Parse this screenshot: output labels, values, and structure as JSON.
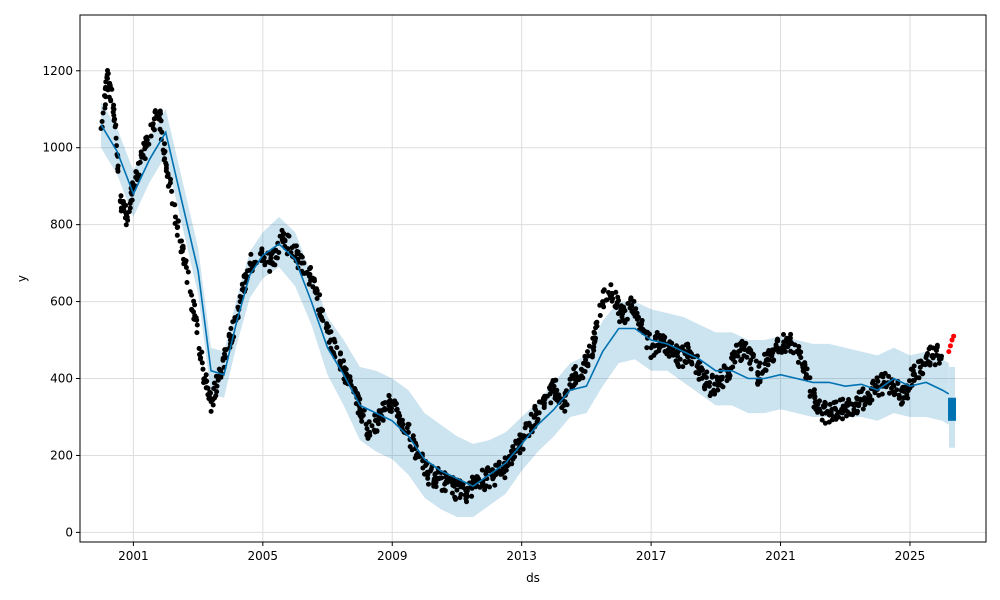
{
  "chart_data": {
    "type": "line",
    "xlabel": "ds",
    "ylabel": "y",
    "grid": true,
    "legend": "none",
    "xlim": [
      1999.35,
      2027.35
    ],
    "ylim": [
      -25,
      1345
    ],
    "xticks": [
      2001,
      2005,
      2009,
      2013,
      2017,
      2021,
      2025
    ],
    "xtick_labels": [
      "2001",
      "2005",
      "2009",
      "2013",
      "2017",
      "2021",
      "2025"
    ],
    "yticks": [
      0,
      200,
      400,
      600,
      800,
      1000,
      1200
    ],
    "ytick_labels": [
      "0",
      "200",
      "400",
      "600",
      "800",
      "1000",
      "1200"
    ],
    "colors": {
      "observed": "#000000",
      "forecast": "#0072B2",
      "interval": "#0072B2",
      "recent": "#ff0000",
      "grid": "#dddddd",
      "frame": "#000000"
    },
    "series": [
      {
        "role": "observed",
        "style": "points",
        "x": [
          2000.0,
          2000.2,
          2000.4,
          2000.6,
          2000.8,
          2001.0,
          2001.3,
          2001.6,
          2001.8,
          2002.0,
          2002.3,
          2002.6,
          2002.9,
          2003.2,
          2003.4,
          2003.7,
          2004.0,
          2004.3,
          2004.6,
          2005.0,
          2005.3,
          2005.6,
          2005.9,
          2006.2,
          2006.5,
          2006.8,
          2007.1,
          2007.4,
          2007.7,
          2008.0,
          2008.3,
          2008.6,
          2008.9,
          2009.2,
          2009.5,
          2009.8,
          2010.1,
          2010.4,
          2010.7,
          2011.0,
          2011.3,
          2011.6,
          2011.9,
          2012.2,
          2012.5,
          2012.8,
          2013.1,
          2013.4,
          2013.7,
          2014.0,
          2014.3,
          2014.6,
          2014.9,
          2015.2,
          2015.5,
          2015.8,
          2016.1,
          2016.4,
          2016.7,
          2017.0,
          2017.3,
          2017.6,
          2017.9,
          2018.2,
          2018.5,
          2018.8,
          2019.1,
          2019.4,
          2019.7,
          2020.0,
          2020.3,
          2020.6,
          2020.9,
          2021.2,
          2021.5,
          2021.8,
          2022.1,
          2022.4,
          2022.7,
          2023.0,
          2023.3,
          2023.6,
          2023.9,
          2024.2,
          2024.5,
          2024.8,
          2025.1,
          2025.4,
          2025.7
        ],
        "y": [
          1050,
          1180,
          1100,
          860,
          820,
          900,
          980,
          1060,
          1090,
          960,
          820,
          700,
          560,
          400,
          340,
          420,
          500,
          600,
          700,
          720,
          700,
          760,
          740,
          700,
          660,
          580,
          500,
          440,
          390,
          320,
          260,
          300,
          330,
          310,
          260,
          200,
          150,
          140,
          130,
          110,
          100,
          130,
          140,
          150,
          170,
          210,
          250,
          300,
          330,
          380,
          330,
          400,
          420,
          480,
          600,
          620,
          560,
          590,
          530,
          480,
          500,
          470,
          450,
          470,
          420,
          380,
          390,
          420,
          470,
          470,
          410,
          450,
          480,
          500,
          470,
          410,
          330,
          310,
          320,
          320,
          330,
          350,
          370,
          390,
          380,
          350,
          410,
          440,
          460
        ]
      },
      {
        "role": "recent",
        "style": "points",
        "x": [
          2026.2,
          2026.25,
          2026.3,
          2026.35
        ],
        "y": [
          470,
          485,
          500,
          510
        ]
      },
      {
        "role": "forecast",
        "style": "line",
        "x": [
          2000.0,
          2000.5,
          2001.0,
          2001.5,
          2002.0,
          2002.5,
          2003.0,
          2003.4,
          2003.8,
          2004.2,
          2004.6,
          2005.0,
          2005.5,
          2006.0,
          2006.5,
          2007.0,
          2007.5,
          2008.0,
          2008.5,
          2009.0,
          2009.5,
          2010.0,
          2010.5,
          2011.0,
          2011.5,
          2012.0,
          2012.5,
          2013.0,
          2013.5,
          2014.0,
          2014.5,
          2015.0,
          2015.5,
          2016.0,
          2016.5,
          2017.0,
          2017.5,
          2018.0,
          2018.5,
          2019.0,
          2019.5,
          2020.0,
          2020.5,
          2021.0,
          2021.5,
          2022.0,
          2022.5,
          2023.0,
          2023.5,
          2024.0,
          2024.5,
          2025.0,
          2025.5,
          2026.0,
          2026.2
        ],
        "y": [
          1060,
          990,
          880,
          970,
          1040,
          860,
          680,
          420,
          410,
          550,
          670,
          720,
          750,
          710,
          600,
          480,
          410,
          330,
          310,
          290,
          250,
          190,
          160,
          140,
          120,
          150,
          180,
          230,
          280,
          320,
          370,
          380,
          470,
          530,
          530,
          500,
          490,
          470,
          450,
          420,
          420,
          400,
          400,
          410,
          400,
          390,
          390,
          380,
          385,
          370,
          400,
          380,
          390,
          370,
          360
        ]
      },
      {
        "role": "interval",
        "style": "band",
        "x": [
          2000.0,
          2000.5,
          2001.0,
          2001.5,
          2002.0,
          2002.5,
          2003.0,
          2003.4,
          2003.8,
          2004.2,
          2004.6,
          2005.0,
          2005.5,
          2006.0,
          2006.5,
          2007.0,
          2007.5,
          2008.0,
          2008.5,
          2009.0,
          2009.5,
          2010.0,
          2010.5,
          2011.0,
          2011.5,
          2012.0,
          2012.5,
          2013.0,
          2013.5,
          2014.0,
          2014.5,
          2015.0,
          2015.5,
          2016.0,
          2016.5,
          2017.0,
          2017.5,
          2018.0,
          2018.5,
          2019.0,
          2019.5,
          2020.0,
          2020.5,
          2021.0,
          2021.5,
          2022.0,
          2022.5,
          2023.0,
          2023.5,
          2024.0,
          2024.5,
          2025.0,
          2025.5,
          2026.0,
          2026.2
        ],
        "upper": [
          1120,
          1050,
          940,
          1030,
          1100,
          920,
          740,
          480,
          470,
          610,
          730,
          780,
          820,
          780,
          670,
          560,
          500,
          430,
          420,
          400,
          370,
          310,
          280,
          250,
          230,
          240,
          260,
          300,
          340,
          390,
          440,
          460,
          550,
          600,
          600,
          580,
          570,
          560,
          540,
          520,
          520,
          500,
          500,
          510,
          500,
          490,
          490,
          480,
          470,
          460,
          480,
          460,
          470,
          450,
          440
        ],
        "lower": [
          1000,
          930,
          820,
          910,
          980,
          800,
          620,
          360,
          350,
          490,
          610,
          660,
          690,
          640,
          540,
          410,
          330,
          240,
          210,
          190,
          150,
          90,
          60,
          40,
          40,
          70,
          100,
          160,
          210,
          250,
          300,
          310,
          380,
          440,
          450,
          420,
          420,
          390,
          360,
          330,
          330,
          310,
          310,
          320,
          310,
          300,
          300,
          300,
          300,
          290,
          310,
          300,
          300,
          290,
          280
        ]
      },
      {
        "role": "forecast-tail",
        "style": "range",
        "x": [
          2026.3
        ],
        "low": [
          290
        ],
        "high": [
          350
        ],
        "band_low": [
          220
        ],
        "band_high": [
          430
        ]
      }
    ]
  }
}
